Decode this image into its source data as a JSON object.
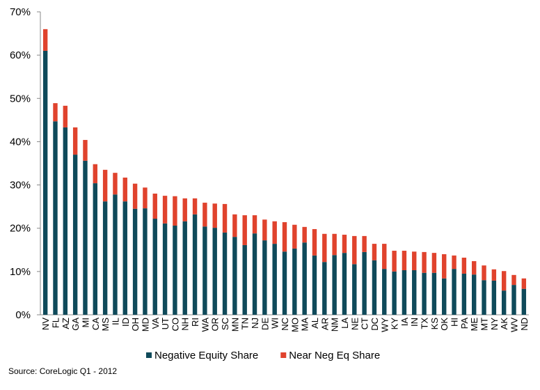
{
  "chart_data": {
    "type": "stacked_bar",
    "source": "Source: CoreLogic  Q1 - 2012",
    "categories": [
      "NV",
      "FL",
      "AZ",
      "GA",
      "MI",
      "CA",
      "MS",
      "IL",
      "ID",
      "OH",
      "MD",
      "VA",
      "UT",
      "CO",
      "NH",
      "RI",
      "WA",
      "OR",
      "SC",
      "MN",
      "TN",
      "NJ",
      "DE",
      "WI",
      "NC",
      "MO",
      "MA",
      "AL",
      "AR",
      "NM",
      "LA",
      "NE",
      "CT",
      "DC",
      "WY",
      "KY",
      "IA",
      "IN",
      "TX",
      "KS",
      "OK",
      "HI",
      "PA",
      "ME",
      "MT",
      "NY",
      "AK",
      "WV",
      "ND"
    ],
    "series": [
      {
        "name": "Negative Equity Share",
        "color": "#0f4a5a",
        "values": [
          61.0,
          44.7,
          43.3,
          37.0,
          35.6,
          30.4,
          26.2,
          27.8,
          26.2,
          24.5,
          24.6,
          22.2,
          21.1,
          20.6,
          21.6,
          23.2,
          20.4,
          20.1,
          19.0,
          18.0,
          16.1,
          18.8,
          17.2,
          16.4,
          14.6,
          15.3,
          16.7,
          13.7,
          12.2,
          13.8,
          14.3,
          11.7,
          14.5,
          12.6,
          10.6,
          10.0,
          10.3,
          10.3,
          9.7,
          9.7,
          8.4,
          10.6,
          9.5,
          9.3,
          8.0,
          7.9,
          5.6,
          6.9,
          6.0
        ]
      },
      {
        "name": "Near Neg Eq Share",
        "color": "#e0432d",
        "values": [
          5.0,
          4.2,
          5.0,
          6.3,
          4.8,
          4.4,
          7.3,
          5.0,
          5.5,
          5.8,
          4.8,
          5.8,
          6.4,
          6.8,
          5.3,
          3.7,
          5.5,
          5.6,
          6.6,
          5.2,
          6.9,
          4.2,
          4.8,
          5.2,
          6.8,
          5.5,
          3.6,
          6.1,
          6.5,
          4.9,
          4.2,
          6.5,
          3.7,
          3.8,
          5.8,
          4.8,
          4.5,
          4.3,
          4.8,
          4.6,
          5.6,
          3.1,
          3.7,
          3.1,
          3.4,
          2.6,
          4.5,
          2.3,
          2.4
        ]
      }
    ],
    "ylim": [
      0,
      70
    ],
    "yticks": [
      {
        "value": 0,
        "label": "0%"
      },
      {
        "value": 10,
        "label": "10%"
      },
      {
        "value": 20,
        "label": "20%"
      },
      {
        "value": 30,
        "label": "30%"
      },
      {
        "value": 40,
        "label": "40%"
      },
      {
        "value": 50,
        "label": "50%"
      },
      {
        "value": 60,
        "label": "60%"
      },
      {
        "value": 70,
        "label": "70%"
      }
    ],
    "legend": "bottom"
  }
}
